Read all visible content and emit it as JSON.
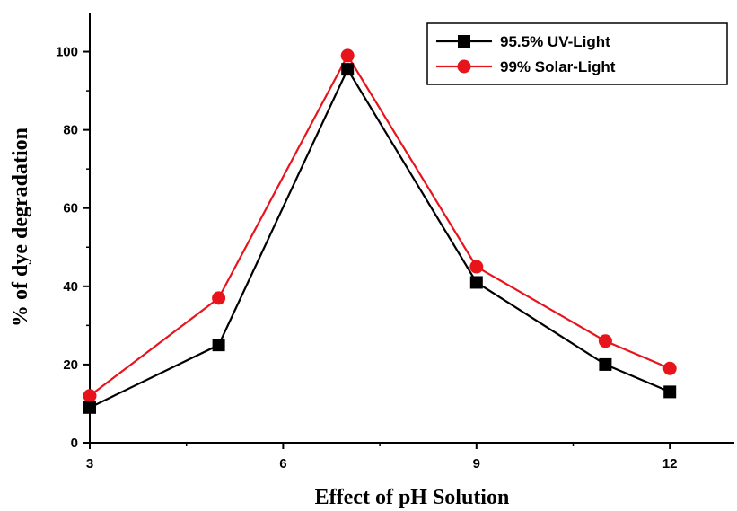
{
  "chart_data": {
    "type": "line",
    "title": "",
    "xlabel": "Effect of pH Solution",
    "ylabel": "% of dye degradation",
    "xlim": [
      3,
      13
    ],
    "ylim": [
      0,
      110
    ],
    "xticks": [
      3,
      6,
      9,
      12
    ],
    "xminor": [
      4.5,
      7.5,
      10.5
    ],
    "yticks": [
      0,
      20,
      40,
      60,
      80,
      100
    ],
    "yminor": [
      10,
      30,
      50,
      70,
      90
    ],
    "legend_position": "top-right",
    "grid": false,
    "series": [
      {
        "name": "95.5% UV-Light",
        "color": "#000000",
        "marker": "square",
        "x": [
          3,
          5,
          7,
          9,
          11,
          12
        ],
        "y": [
          9,
          25,
          95.5,
          41,
          20,
          13
        ]
      },
      {
        "name": "99% Solar-Light",
        "color": "#e8141b",
        "marker": "circle",
        "x": [
          3,
          5,
          7,
          9,
          11,
          12
        ],
        "y": [
          12,
          37,
          99,
          45,
          26,
          19
        ]
      }
    ]
  }
}
